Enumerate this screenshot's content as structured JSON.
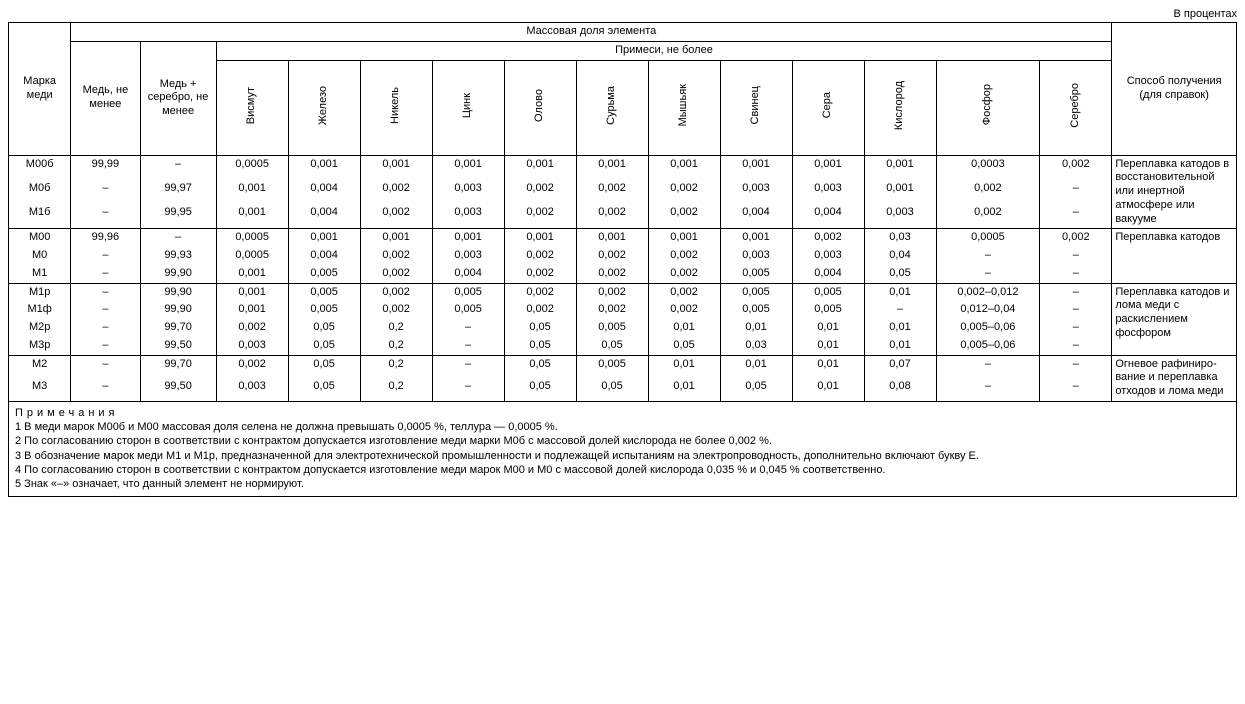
{
  "top_note": "В процентах",
  "headers": {
    "mark": "Марка меди",
    "mass_fraction": "Массовая доля элемента",
    "cu_min": "Медь, не менее",
    "cu_ag_min": "Медь + серебро, не менее",
    "impurities": "Примеси, не более",
    "method": "Способ получения (для справок)",
    "imp_cols": {
      "bi": "Висмут",
      "fe": "Железо",
      "ni": "Никель",
      "zn": "Цинк",
      "sn": "Олово",
      "sb": "Сурьма",
      "as": "Мышьяк",
      "pb": "Свинец",
      "s": "Сера",
      "o": "Кислород",
      "p": "Фосфор",
      "ag": "Серебро"
    }
  },
  "groups": [
    {
      "method": "Переплавка катодов в восстанови­тельной или инертной атмосфере или вакууме",
      "rows": [
        {
          "mark": "М00б",
          "cu": "99,99",
          "cuag": "–",
          "bi": "0,0005",
          "fe": "0,001",
          "ni": "0,001",
          "zn": "0,001",
          "sn": "0,001",
          "sb": "0,001",
          "as": "0,001",
          "pb": "0,001",
          "s": "0,001",
          "o": "0,001",
          "p": "0,0003",
          "ag": "0,002"
        },
        {
          "mark": "М0б",
          "cu": "–",
          "cuag": "99,97",
          "bi": "0,001",
          "fe": "0,004",
          "ni": "0,002",
          "zn": "0,003",
          "sn": "0,002",
          "sb": "0,002",
          "as": "0,002",
          "pb": "0,003",
          "s": "0,003",
          "o": "0,001",
          "p": "0,002",
          "ag": "–"
        },
        {
          "mark": "М1б",
          "cu": "–",
          "cuag": "99,95",
          "bi": "0,001",
          "fe": "0,004",
          "ni": "0,002",
          "zn": "0,003",
          "sn": "0,002",
          "sb": "0,002",
          "as": "0,002",
          "pb": "0,004",
          "s": "0,004",
          "o": "0,003",
          "p": "0,002",
          "ag": "–"
        }
      ]
    },
    {
      "method": "Переплавка катодов",
      "rows": [
        {
          "mark": "М00",
          "cu": "99,96",
          "cuag": "–",
          "bi": "0,0005",
          "fe": "0,001",
          "ni": "0,001",
          "zn": "0,001",
          "sn": "0,001",
          "sb": "0,001",
          "as": "0,001",
          "pb": "0,001",
          "s": "0,002",
          "o": "0,03",
          "p": "0,0005",
          "ag": "0,002"
        },
        {
          "mark": "М0",
          "cu": "–",
          "cuag": "99,93",
          "bi": "0,0005",
          "fe": "0,004",
          "ni": "0,002",
          "zn": "0,003",
          "sn": "0,002",
          "sb": "0,002",
          "as": "0,002",
          "pb": "0,003",
          "s": "0,003",
          "o": "0,04",
          "p": "–",
          "ag": "–"
        },
        {
          "mark": "М1",
          "cu": "–",
          "cuag": "99,90",
          "bi": "0,001",
          "fe": "0,005",
          "ni": "0,002",
          "zn": "0,004",
          "sn": "0,002",
          "sb": "0,002",
          "as": "0,002",
          "pb": "0,005",
          "s": "0,004",
          "o": "0,05",
          "p": "–",
          "ag": "–"
        }
      ]
    },
    {
      "method": "Переплавка катодов и лома меди с раскислением фосфором",
      "rows": [
        {
          "mark": "М1р",
          "cu": "–",
          "cuag": "99,90",
          "bi": "0,001",
          "fe": "0,005",
          "ni": "0,002",
          "zn": "0,005",
          "sn": "0,002",
          "sb": "0,002",
          "as": "0,002",
          "pb": "0,005",
          "s": "0,005",
          "o": "0,01",
          "p": "0,002–0,012",
          "ag": "–"
        },
        {
          "mark": "М1ф",
          "cu": "–",
          "cuag": "99,90",
          "bi": "0,001",
          "fe": "0,005",
          "ni": "0,002",
          "zn": "0,005",
          "sn": "0,002",
          "sb": "0,002",
          "as": "0,002",
          "pb": "0,005",
          "s": "0,005",
          "o": "–",
          "p": "0,012–0,04",
          "ag": "–"
        },
        {
          "mark": "М2р",
          "cu": "–",
          "cuag": "99,70",
          "bi": "0,002",
          "fe": "0,05",
          "ni": "0,2",
          "zn": "–",
          "sn": "0,05",
          "sb": "0,005",
          "as": "0,01",
          "pb": "0,01",
          "s": "0,01",
          "o": "0,01",
          "p": "0,005–0,06",
          "ag": "–"
        },
        {
          "mark": "М3р",
          "cu": "–",
          "cuag": "99,50",
          "bi": "0,003",
          "fe": "0,05",
          "ni": "0,2",
          "zn": "–",
          "sn": "0,05",
          "sb": "0,05",
          "as": "0,05",
          "pb": "0,03",
          "s": "0,01",
          "o": "0,01",
          "p": "0,005–0,06",
          "ag": "–"
        }
      ]
    },
    {
      "method": "Огневое рафиниро­вание и переплавка отходов и лома меди",
      "rows": [
        {
          "mark": "М2",
          "cu": "–",
          "cuag": "99,70",
          "bi": "0,002",
          "fe": "0,05",
          "ni": "0,2",
          "zn": "–",
          "sn": "0,05",
          "sb": "0,005",
          "as": "0,01",
          "pb": "0,01",
          "s": "0,01",
          "o": "0,07",
          "p": "–",
          "ag": "–"
        },
        {
          "mark": "М3",
          "cu": "–",
          "cuag": "99,50",
          "bi": "0,003",
          "fe": "0,05",
          "ni": "0,2",
          "zn": "–",
          "sn": "0,05",
          "sb": "0,05",
          "as": "0,01",
          "pb": "0,05",
          "s": "0,01",
          "o": "0,08",
          "p": "–",
          "ag": "–"
        }
      ]
    }
  ],
  "notes": {
    "title": "Примечания",
    "items": [
      "1 В меди марок М00б и М00 массовая доля селена не должна превышать 0,0005 %, теллура — 0,0005 %.",
      "2 По согласованию сторон в соответствии с контрактом допускается изготовление меди марки М0б с массовой долей кислорода не более 0,002 %.",
      "3 В обозначение марок меди М1 и М1р, предназначенной для электротехнической промышленности и подлежащей испытаниям на электропроводность, дополнительно включают букву Е.",
      "4 По согласованию сторон в соответствии с контрактом допускается изготовление меди марок М00 и М0 с массовой долей кислорода 0,035 % и 0,045 % соответственно.",
      "5 Знак «–» означает, что данный элемент не нормируют."
    ]
  },
  "style": {
    "font_family": "Arial, sans-serif",
    "font_size_pt": 11,
    "border_color": "#000000",
    "background_color": "#ffffff",
    "text_color": "#000000"
  }
}
